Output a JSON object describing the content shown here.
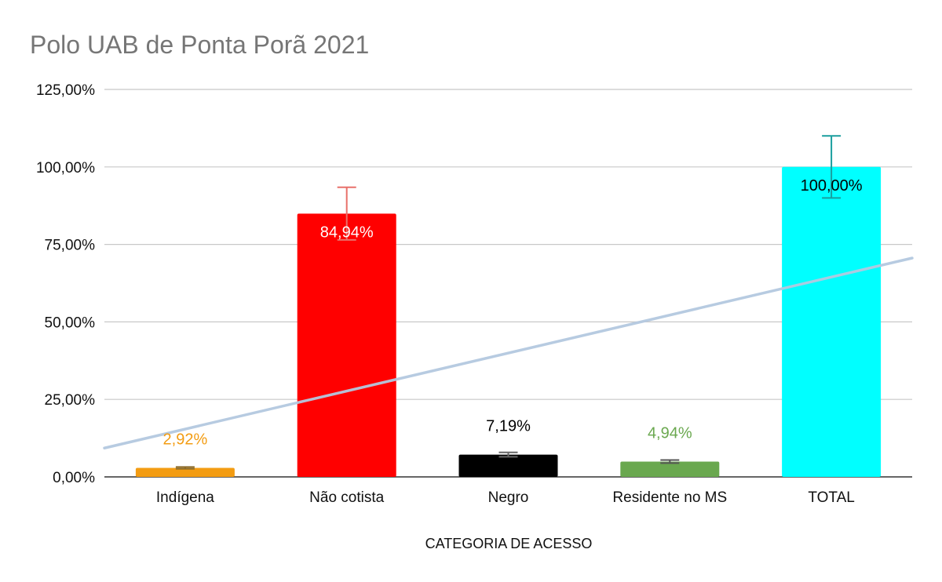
{
  "chart_data": {
    "type": "bar",
    "title": "Polo UAB de Ponta Porã 2021",
    "xlabel": "CATEGORIA DE ACESSO",
    "ylabel": "",
    "ylim": [
      0,
      125
    ],
    "yticks": [
      0,
      25,
      50,
      75,
      100,
      125
    ],
    "ytick_labels": [
      "0,00%",
      "25,00%",
      "50,00%",
      "75,00%",
      "100,00%",
      "125,00%"
    ],
    "categories": [
      "Indígena",
      "Não cotista",
      "Negro",
      "Residente no MS",
      "TOTAL"
    ],
    "values": [
      2.92,
      84.94,
      7.19,
      4.94,
      100.0
    ],
    "data_labels": [
      "2,92%",
      "84,94%",
      "7,19%",
      "4,94%",
      "100,00%"
    ],
    "colors": [
      "#F39C12",
      "#FF0000",
      "#000000",
      "#6AA84F",
      "#00FFFF"
    ],
    "label_colors": [
      "#F39C12",
      "#FFFFFF",
      "#000000",
      "#6AA84F",
      "#000000"
    ],
    "error_bar_colors": [
      "#8B6B2A",
      "#E8706A",
      "#666666",
      "#555555",
      "#1A9E9E"
    ],
    "error_plus": [
      0.29,
      8.49,
      0.72,
      0.49,
      10.0
    ],
    "error_minus": [
      0.29,
      8.49,
      0.72,
      0.49,
      10.0
    ],
    "trendline": {
      "type": "linear",
      "color": "#B4C9E0",
      "y_at_left": 9.3,
      "y_at_right": 70.6
    },
    "grid": true,
    "legend": "none"
  }
}
